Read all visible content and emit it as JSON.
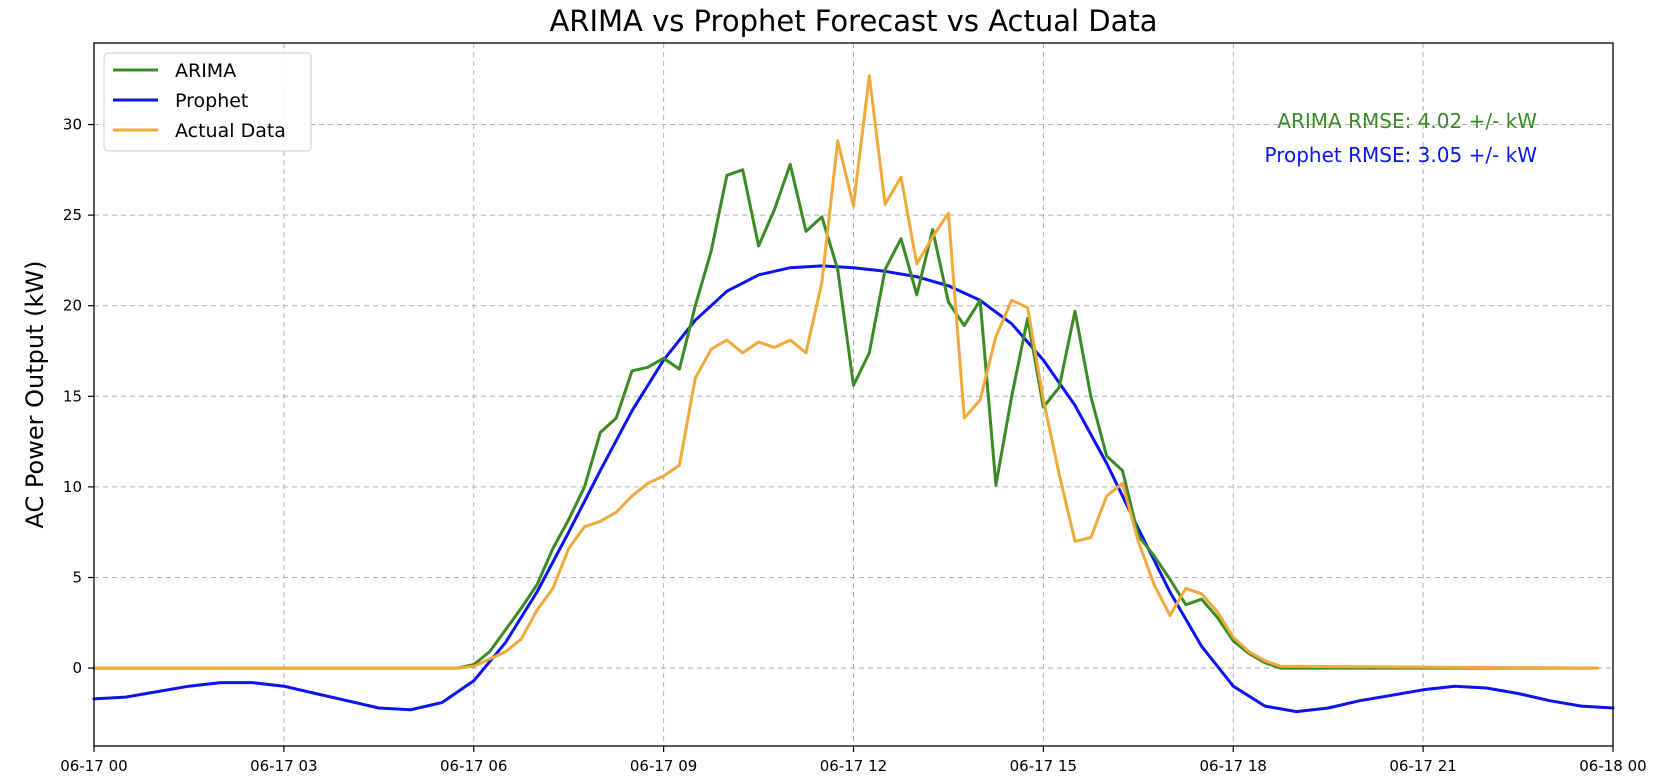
{
  "chart_data": {
    "type": "line",
    "title": "ARIMA vs Prophet Forecast vs Actual Data",
    "xlabel": "",
    "ylabel": "AC Power Output (kW)",
    "x_range": [
      "06-17 00:00",
      "06-18 00:00"
    ],
    "ylim": [
      -4.3,
      34.5
    ],
    "grid": true,
    "legend": "top-left",
    "x_tick_labels": [
      "06-17 00",
      "06-17 03",
      "06-17 06",
      "06-17 09",
      "06-17 12",
      "06-17 15",
      "06-17 18",
      "06-17 21",
      "06-18 00"
    ],
    "y_ticks": [
      0,
      5,
      10,
      15,
      20,
      25,
      30
    ],
    "annotations": [
      {
        "name": "arima-rmse-annotation",
        "text": "ARIMA RMSE: 4.02 +/- kW",
        "color": "#3a8a25"
      },
      {
        "name": "prophet-rmse-annotation",
        "text": "Prophet RMSE: 3.05 +/- kW",
        "color": "#0a14f0"
      }
    ],
    "series": [
      {
        "name": "ARIMA",
        "color": "#3a8a25",
        "x": [
          "06-17 00:00",
          "06-17 05:45",
          "06-17 06:00",
          "06-17 06:15",
          "06-17 06:30",
          "06-17 06:45",
          "06-17 07:00",
          "06-17 07:15",
          "06-17 07:30",
          "06-17 07:45",
          "06-17 08:00",
          "06-17 08:15",
          "06-17 08:30",
          "06-17 08:45",
          "06-17 09:00",
          "06-17 09:15",
          "06-17 09:30",
          "06-17 09:45",
          "06-17 10:00",
          "06-17 10:15",
          "06-17 10:30",
          "06-17 10:45",
          "06-17 11:00",
          "06-17 11:15",
          "06-17 11:30",
          "06-17 11:45",
          "06-17 12:00",
          "06-17 12:15",
          "06-17 12:30",
          "06-17 12:45",
          "06-17 13:00",
          "06-17 13:15",
          "06-17 13:30",
          "06-17 13:45",
          "06-17 14:00",
          "06-17 14:15",
          "06-17 14:30",
          "06-17 14:45",
          "06-17 15:00",
          "06-17 15:15",
          "06-17 15:30",
          "06-17 15:45",
          "06-17 16:00",
          "06-17 16:15",
          "06-17 16:30",
          "06-17 16:45",
          "06-17 17:00",
          "06-17 17:15",
          "06-17 17:30",
          "06-17 17:45",
          "06-17 18:00",
          "06-17 18:15",
          "06-17 18:30",
          "06-17 18:45",
          "06-17 23:45"
        ],
        "values": [
          0,
          0,
          0.2,
          0.9,
          2.1,
          3.3,
          4.6,
          6.6,
          8.2,
          10.0,
          13.0,
          13.8,
          16.4,
          16.6,
          17.1,
          16.5,
          20.0,
          23.0,
          27.2,
          27.5,
          23.3,
          25.3,
          27.8,
          24.1,
          24.9,
          22.0,
          15.6,
          17.4,
          22.0,
          23.7,
          20.6,
          24.2,
          20.2,
          18.9,
          20.3,
          10.1,
          15.0,
          19.3,
          14.4,
          15.5,
          19.7,
          15.0,
          11.7,
          10.9,
          7.3,
          6.2,
          4.9,
          3.5,
          3.8,
          2.8,
          1.5,
          0.8,
          0.3,
          0,
          0
        ]
      },
      {
        "name": "Prophet",
        "color": "#0a14f0",
        "x": [
          "06-17 00:00",
          "06-17 00:30",
          "06-17 01:00",
          "06-17 01:30",
          "06-17 02:00",
          "06-17 02:30",
          "06-17 03:00",
          "06-17 03:30",
          "06-17 04:00",
          "06-17 04:30",
          "06-17 05:00",
          "06-17 05:30",
          "06-17 06:00",
          "06-17 06:30",
          "06-17 07:00",
          "06-17 07:30",
          "06-17 08:00",
          "06-17 08:30",
          "06-17 09:00",
          "06-17 09:30",
          "06-17 10:00",
          "06-17 10:30",
          "06-17 11:00",
          "06-17 11:30",
          "06-17 12:00",
          "06-17 12:30",
          "06-17 13:00",
          "06-17 13:30",
          "06-17 14:00",
          "06-17 14:30",
          "06-17 15:00",
          "06-17 15:30",
          "06-17 16:00",
          "06-17 16:30",
          "06-17 17:00",
          "06-17 17:30",
          "06-17 18:00",
          "06-17 18:30",
          "06-17 19:00",
          "06-17 19:30",
          "06-17 20:00",
          "06-17 20:30",
          "06-17 21:00",
          "06-17 21:30",
          "06-17 22:00",
          "06-17 22:30",
          "06-17 23:00",
          "06-17 23:30",
          "06-18 00:00"
        ],
        "values": [
          -1.7,
          -1.6,
          -1.3,
          -1.0,
          -0.8,
          -0.8,
          -1.0,
          -1.4,
          -1.8,
          -2.2,
          -2.3,
          -1.9,
          -0.7,
          1.4,
          4.2,
          7.5,
          10.9,
          14.2,
          17.0,
          19.2,
          20.8,
          21.7,
          22.1,
          22.2,
          22.1,
          21.9,
          21.6,
          21.1,
          20.3,
          19.0,
          17.0,
          14.5,
          11.3,
          7.7,
          4.2,
          1.2,
          -1.0,
          -2.1,
          -2.4,
          -2.2,
          -1.8,
          -1.5,
          -1.2,
          -1.0,
          -1.1,
          -1.4,
          -1.8,
          -2.1,
          -2.2
        ]
      },
      {
        "name": "Actual Data",
        "color": "#f0aa3c",
        "x": [
          "06-17 00:00",
          "06-17 05:45",
          "06-17 06:00",
          "06-17 06:15",
          "06-17 06:30",
          "06-17 06:45",
          "06-17 07:00",
          "06-17 07:15",
          "06-17 07:30",
          "06-17 07:45",
          "06-17 08:00",
          "06-17 08:15",
          "06-17 08:30",
          "06-17 08:45",
          "06-17 09:00",
          "06-17 09:15",
          "06-17 09:30",
          "06-17 09:45",
          "06-17 10:00",
          "06-17 10:15",
          "06-17 10:30",
          "06-17 10:45",
          "06-17 11:00",
          "06-17 11:15",
          "06-17 11:30",
          "06-17 11:45",
          "06-17 12:00",
          "06-17 12:15",
          "06-17 12:30",
          "06-17 12:45",
          "06-17 13:00",
          "06-17 13:15",
          "06-17 13:30",
          "06-17 13:45",
          "06-17 14:00",
          "06-17 14:15",
          "06-17 14:30",
          "06-17 14:45",
          "06-17 15:00",
          "06-17 15:15",
          "06-17 15:30",
          "06-17 15:45",
          "06-17 16:00",
          "06-17 16:15",
          "06-17 16:30",
          "06-17 16:45",
          "06-17 17:00",
          "06-17 17:15",
          "06-17 17:30",
          "06-17 17:45",
          "06-17 18:00",
          "06-17 18:15",
          "06-17 18:30",
          "06-17 18:45",
          "06-17 23:45"
        ],
        "values": [
          0,
          0,
          0.1,
          0.5,
          0.9,
          1.6,
          3.2,
          4.4,
          6.6,
          7.8,
          8.1,
          8.6,
          9.5,
          10.2,
          10.6,
          11.2,
          16.0,
          17.6,
          18.1,
          17.4,
          18.0,
          17.7,
          18.1,
          17.4,
          21.3,
          29.1,
          25.5,
          32.7,
          25.6,
          27.1,
          22.3,
          23.8,
          25.1,
          13.8,
          14.8,
          18.3,
          20.3,
          19.9,
          14.8,
          10.7,
          7.0,
          7.2,
          9.5,
          10.2,
          7.0,
          4.6,
          2.9,
          4.4,
          4.1,
          3.1,
          1.7,
          0.9,
          0.4,
          0.1,
          0
        ]
      }
    ]
  }
}
